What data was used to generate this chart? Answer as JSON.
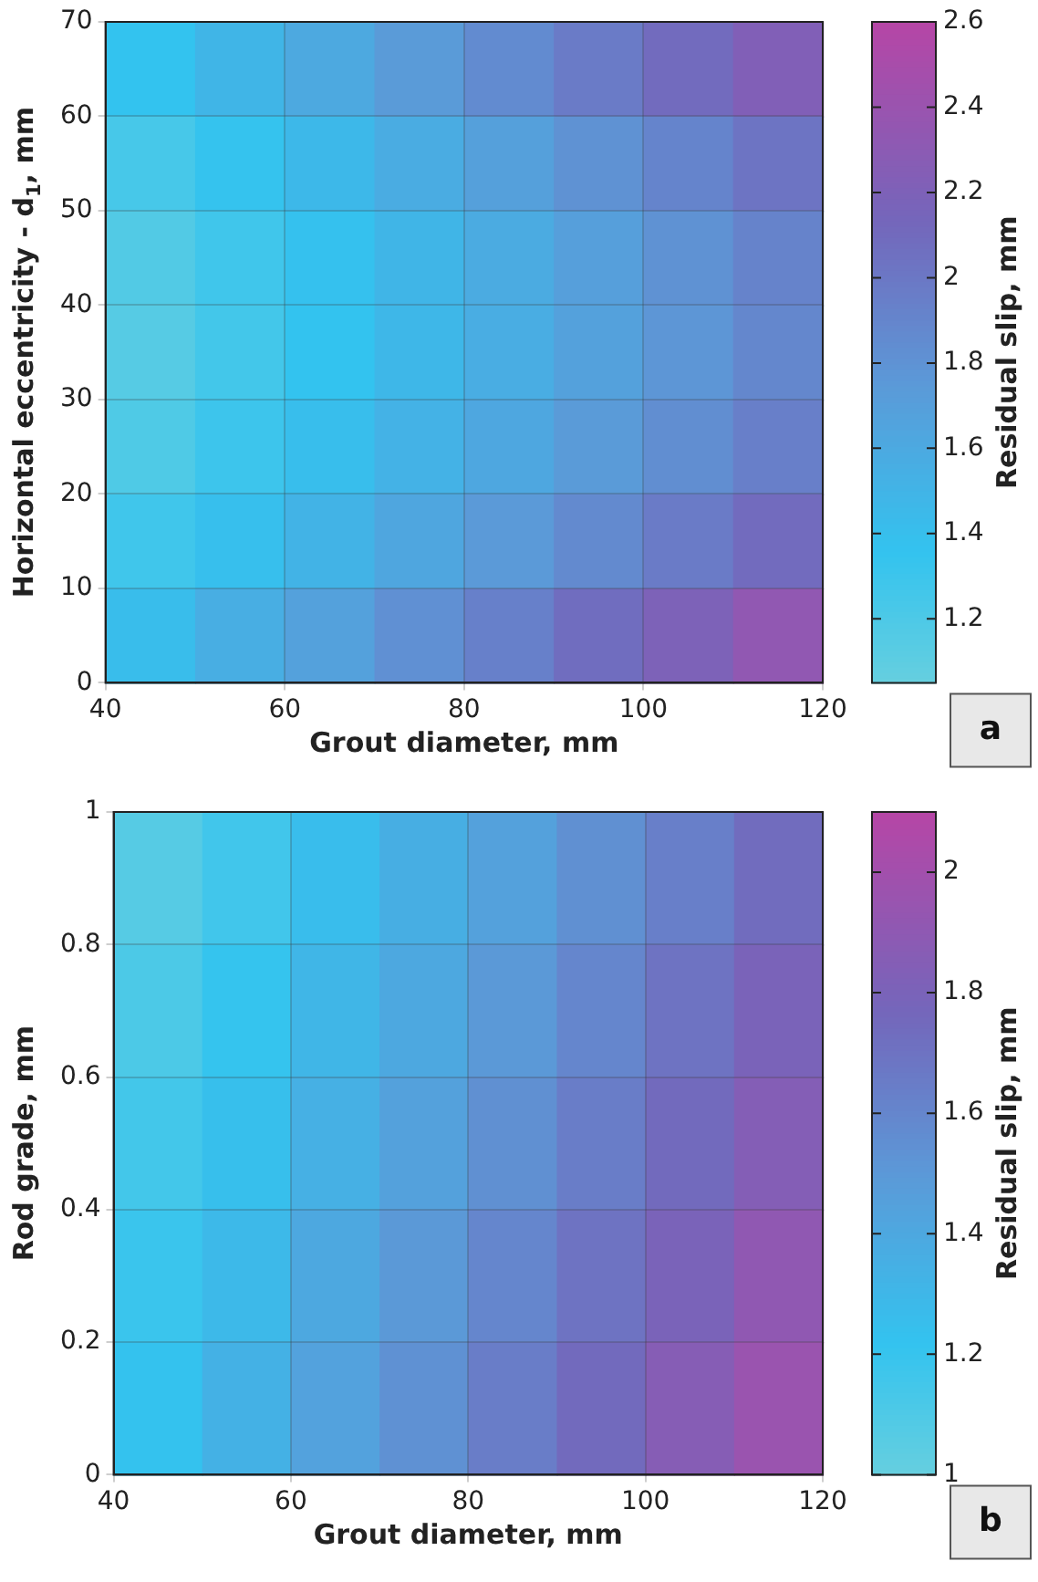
{
  "chart_data": [
    {
      "type": "heatmap",
      "xlabel": "Grout diameter, mm",
      "ylabel": "Horizontal eccentricity - d$_{1}$, mm",
      "clabel": "Residual slip, mm",
      "xlim": [
        40,
        120
      ],
      "xticks": [
        40,
        60,
        80,
        100,
        120
      ],
      "ylim": [
        0,
        70
      ],
      "yticks": [
        0,
        10,
        20,
        30,
        40,
        50,
        60,
        70
      ],
      "grid": true,
      "clim": [
        1.05,
        2.6
      ],
      "cticks": [
        1.2,
        1.4,
        1.6,
        1.8,
        2,
        2.2,
        2.4,
        2.6
      ],
      "annotations": [
        "a"
      ],
      "cells": [
        [
          1.36,
          1.49,
          1.61,
          1.74,
          1.86,
          1.98,
          2.1,
          2.23
        ],
        [
          1.24,
          1.35,
          1.46,
          1.58,
          1.69,
          1.81,
          1.91,
          2.03
        ],
        [
          1.17,
          1.28,
          1.38,
          1.49,
          1.59,
          1.7,
          1.81,
          1.92
        ],
        [
          1.15,
          1.26,
          1.36,
          1.47,
          1.57,
          1.68,
          1.78,
          1.89
        ],
        [
          1.19,
          1.3,
          1.41,
          1.52,
          1.62,
          1.74,
          1.84,
          1.95
        ],
        [
          1.28,
          1.4,
          1.51,
          1.63,
          1.75,
          1.87,
          1.98,
          2.1
        ],
        [
          1.42,
          1.56,
          1.68,
          1.82,
          1.94,
          2.08,
          2.2,
          2.34
        ]
      ]
    },
    {
      "type": "heatmap",
      "xlabel": "Grout diameter, mm",
      "ylabel": "Rod grade, mm",
      "clabel": "Residual slip, mm",
      "xlim": [
        40,
        120
      ],
      "xticks": [
        40,
        60,
        80,
        100,
        120
      ],
      "ylim": [
        0,
        1
      ],
      "yticks": [
        0,
        0.2,
        0.4,
        0.6,
        0.8,
        1
      ],
      "grid": true,
      "clim": [
        1,
        2.1
      ],
      "cticks": [
        1,
        1.2,
        1.4,
        1.6,
        1.8,
        2
      ],
      "annotations": [
        "b"
      ],
      "cells": [
        [
          1.07,
          1.16,
          1.26,
          1.36,
          1.45,
          1.55,
          1.64,
          1.74
        ],
        [
          1.11,
          1.21,
          1.31,
          1.4,
          1.5,
          1.6,
          1.7,
          1.8
        ],
        [
          1.15,
          1.25,
          1.35,
          1.45,
          1.55,
          1.65,
          1.75,
          1.85
        ],
        [
          1.19,
          1.29,
          1.4,
          1.5,
          1.6,
          1.7,
          1.8,
          1.91
        ],
        [
          1.23,
          1.34,
          1.44,
          1.54,
          1.65,
          1.75,
          1.86,
          1.96
        ]
      ]
    }
  ]
}
